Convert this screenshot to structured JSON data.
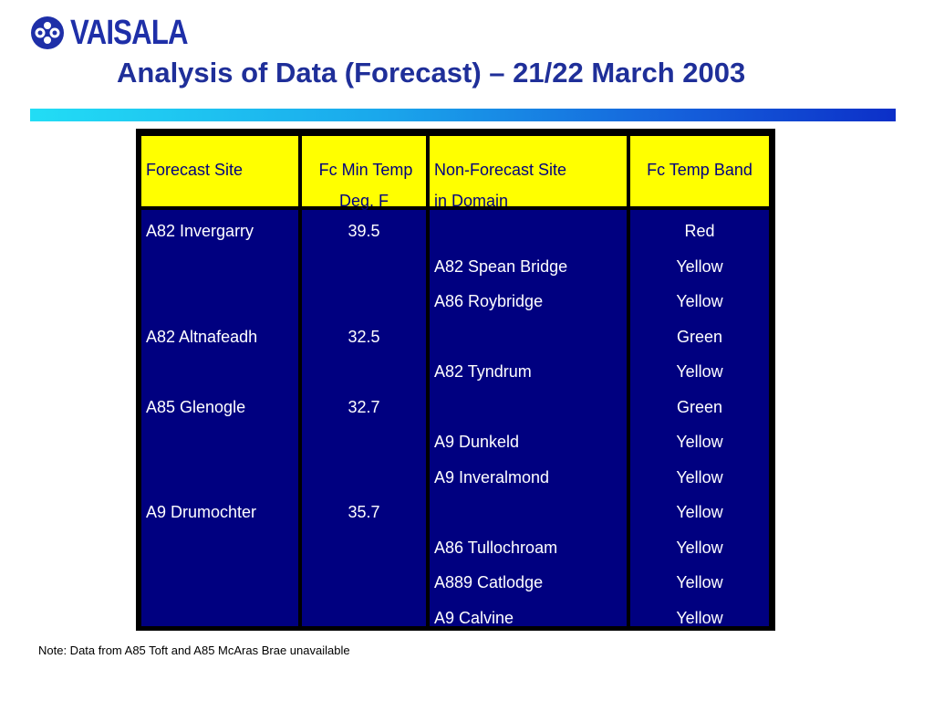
{
  "header": {
    "logo_text": "VAISALA",
    "title": "Analysis of Data (Forecast) – 21/22 March 2003"
  },
  "table": {
    "columns": [
      {
        "line1": "Forecast Site",
        "line2": ""
      },
      {
        "line1": "Fc Min Temp",
        "line2": "Deg. F"
      },
      {
        "line1": "Non-Forecast Site",
        "line2": "in Domain"
      },
      {
        "line1": "Fc Temp Band",
        "line2": ""
      }
    ],
    "rows": [
      {
        "forecast_site": "A82 Invergarry",
        "fc_min_temp": "39.5",
        "non_forecast_site": "",
        "band": "Red"
      },
      {
        "forecast_site": "",
        "fc_min_temp": "",
        "non_forecast_site": "A82 Spean Bridge",
        "band": "Yellow"
      },
      {
        "forecast_site": "",
        "fc_min_temp": "",
        "non_forecast_site": "A86 Roybridge",
        "band": "Yellow"
      },
      {
        "forecast_site": "A82 Altnafeadh",
        "fc_min_temp": "32.5",
        "non_forecast_site": "",
        "band": "Green"
      },
      {
        "forecast_site": "",
        "fc_min_temp": "",
        "non_forecast_site": "A82 Tyndrum",
        "band": "Yellow"
      },
      {
        "forecast_site": "A85 Glenogle",
        "fc_min_temp": "32.7",
        "non_forecast_site": "",
        "band": "Green"
      },
      {
        "forecast_site": "",
        "fc_min_temp": "",
        "non_forecast_site": "A9 Dunkeld",
        "band": "Yellow"
      },
      {
        "forecast_site": "",
        "fc_min_temp": "",
        "non_forecast_site": "A9 Inveralmond",
        "band": "Yellow"
      },
      {
        "forecast_site": "A9 Drumochter",
        "fc_min_temp": "35.7",
        "non_forecast_site": "",
        "band": "Yellow"
      },
      {
        "forecast_site": "",
        "fc_min_temp": "",
        "non_forecast_site": "A86 Tullochroam",
        "band": "Yellow"
      },
      {
        "forecast_site": "",
        "fc_min_temp": "",
        "non_forecast_site": "A889 Catlodge",
        "band": "Yellow"
      },
      {
        "forecast_site": "",
        "fc_min_temp": "",
        "non_forecast_site": "A9 Calvine",
        "band": "Yellow"
      }
    ]
  },
  "note": "Note: Data from A85 Toft and A85 McAras Brae unavailable",
  "colors": {
    "header_bg": "#ffff00",
    "body_bg": "#000080",
    "title": "#1f2f99",
    "logo": "#1e2fa8"
  }
}
